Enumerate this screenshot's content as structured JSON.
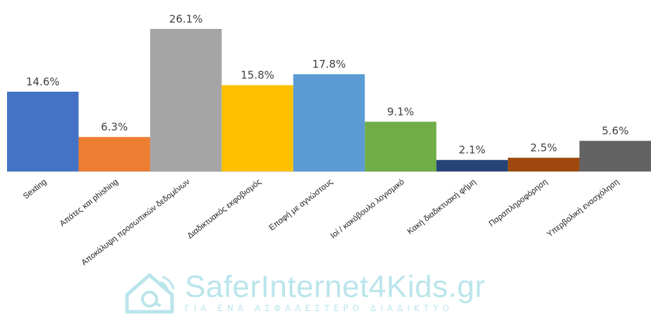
{
  "chart_data": {
    "type": "bar",
    "categories": [
      "Sexting",
      "Απάτες και phishing",
      "Αποκάλυψη προσωπικών δεδομένων",
      "Διαδικτυακός εκφοβισμός",
      "Επαφή με αγνώστους",
      "Ιοί / κακόβουλο λογισμικό",
      "Κακή διαδικτυακή φήμη",
      "Παραπληροφόρηση",
      "Υπερβολική ενασχόληση"
    ],
    "values": [
      14.6,
      6.3,
      26.1,
      15.8,
      17.8,
      9.1,
      2.1,
      2.5,
      5.6
    ],
    "value_labels": [
      "14.6%",
      "6.3%",
      "26.1%",
      "15.8%",
      "17.8%",
      "9.1%",
      "2.1%",
      "2.5%",
      "5.6%"
    ],
    "colors": [
      "#4472C4",
      "#ED7D31",
      "#A5A5A5",
      "#FFC000",
      "#5B9BD5",
      "#70AD47",
      "#264478",
      "#9E480E",
      "#636363"
    ],
    "ylim": [
      0,
      26.1
    ],
    "grid": false,
    "legend": "none"
  },
  "watermark": {
    "brand": "SaferInternet4Kids.gr",
    "tagline": "ΓΙΑ ΕΝΑ ΑΣΦΑΛΕΣΤΕΡΟ ΔΙΑΔΙΚΤΥΟ",
    "icon": "at-sign-wifi-icon",
    "color": "#0aa6b8"
  }
}
